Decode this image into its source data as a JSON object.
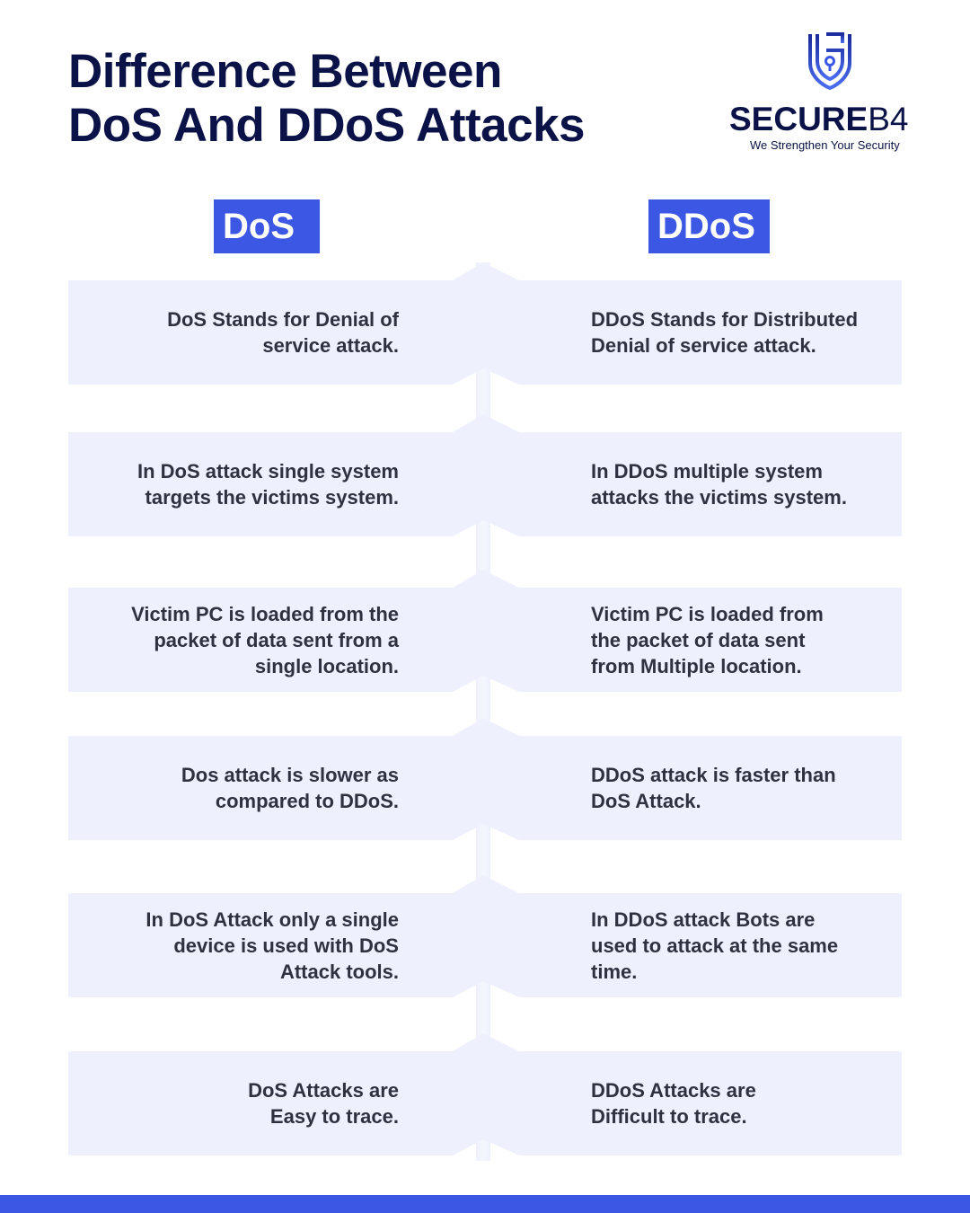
{
  "title": {
    "line1": "Difference Between",
    "line2": "DoS And DDoS Attacks"
  },
  "logo": {
    "name_main": "SECURE",
    "name_suffix": "B4",
    "tagline": "We Strengthen Your Security",
    "icon": "shield-lock-icon"
  },
  "columns": {
    "left": "DoS",
    "right": "DDoS"
  },
  "rows": [
    {
      "left": "DoS Stands for Denial of\nservice attack.",
      "right": "DDoS Stands for Distributed\nDenial of service attack."
    },
    {
      "left": "In DoS attack single system\ntargets the victims system.",
      "right": "In DDoS multiple system\nattacks the victims system."
    },
    {
      "left": "Victim PC is loaded from the\npacket of data sent from a\nsingle location.",
      "right": "Victim PC is loaded from\nthe packet of data sent\nfrom Multiple location."
    },
    {
      "left": "Dos attack is slower as\ncompared to DDoS.",
      "right": "DDoS attack is faster than\nDoS Attack."
    },
    {
      "left": "In DoS Attack only a single\ndevice is used with DoS\nAttack tools.",
      "right": "In DDoS attack Bots are\nused to attack at the same\ntime."
    },
    {
      "left": "DoS Attacks are\nEasy to trace.",
      "right": "DDoS Attacks are\nDifficult to trace."
    }
  ],
  "colors": {
    "accent": "#3b57e3",
    "title": "#0a1247",
    "row_bg": "#eef1fd",
    "text": "#2f3140"
  }
}
